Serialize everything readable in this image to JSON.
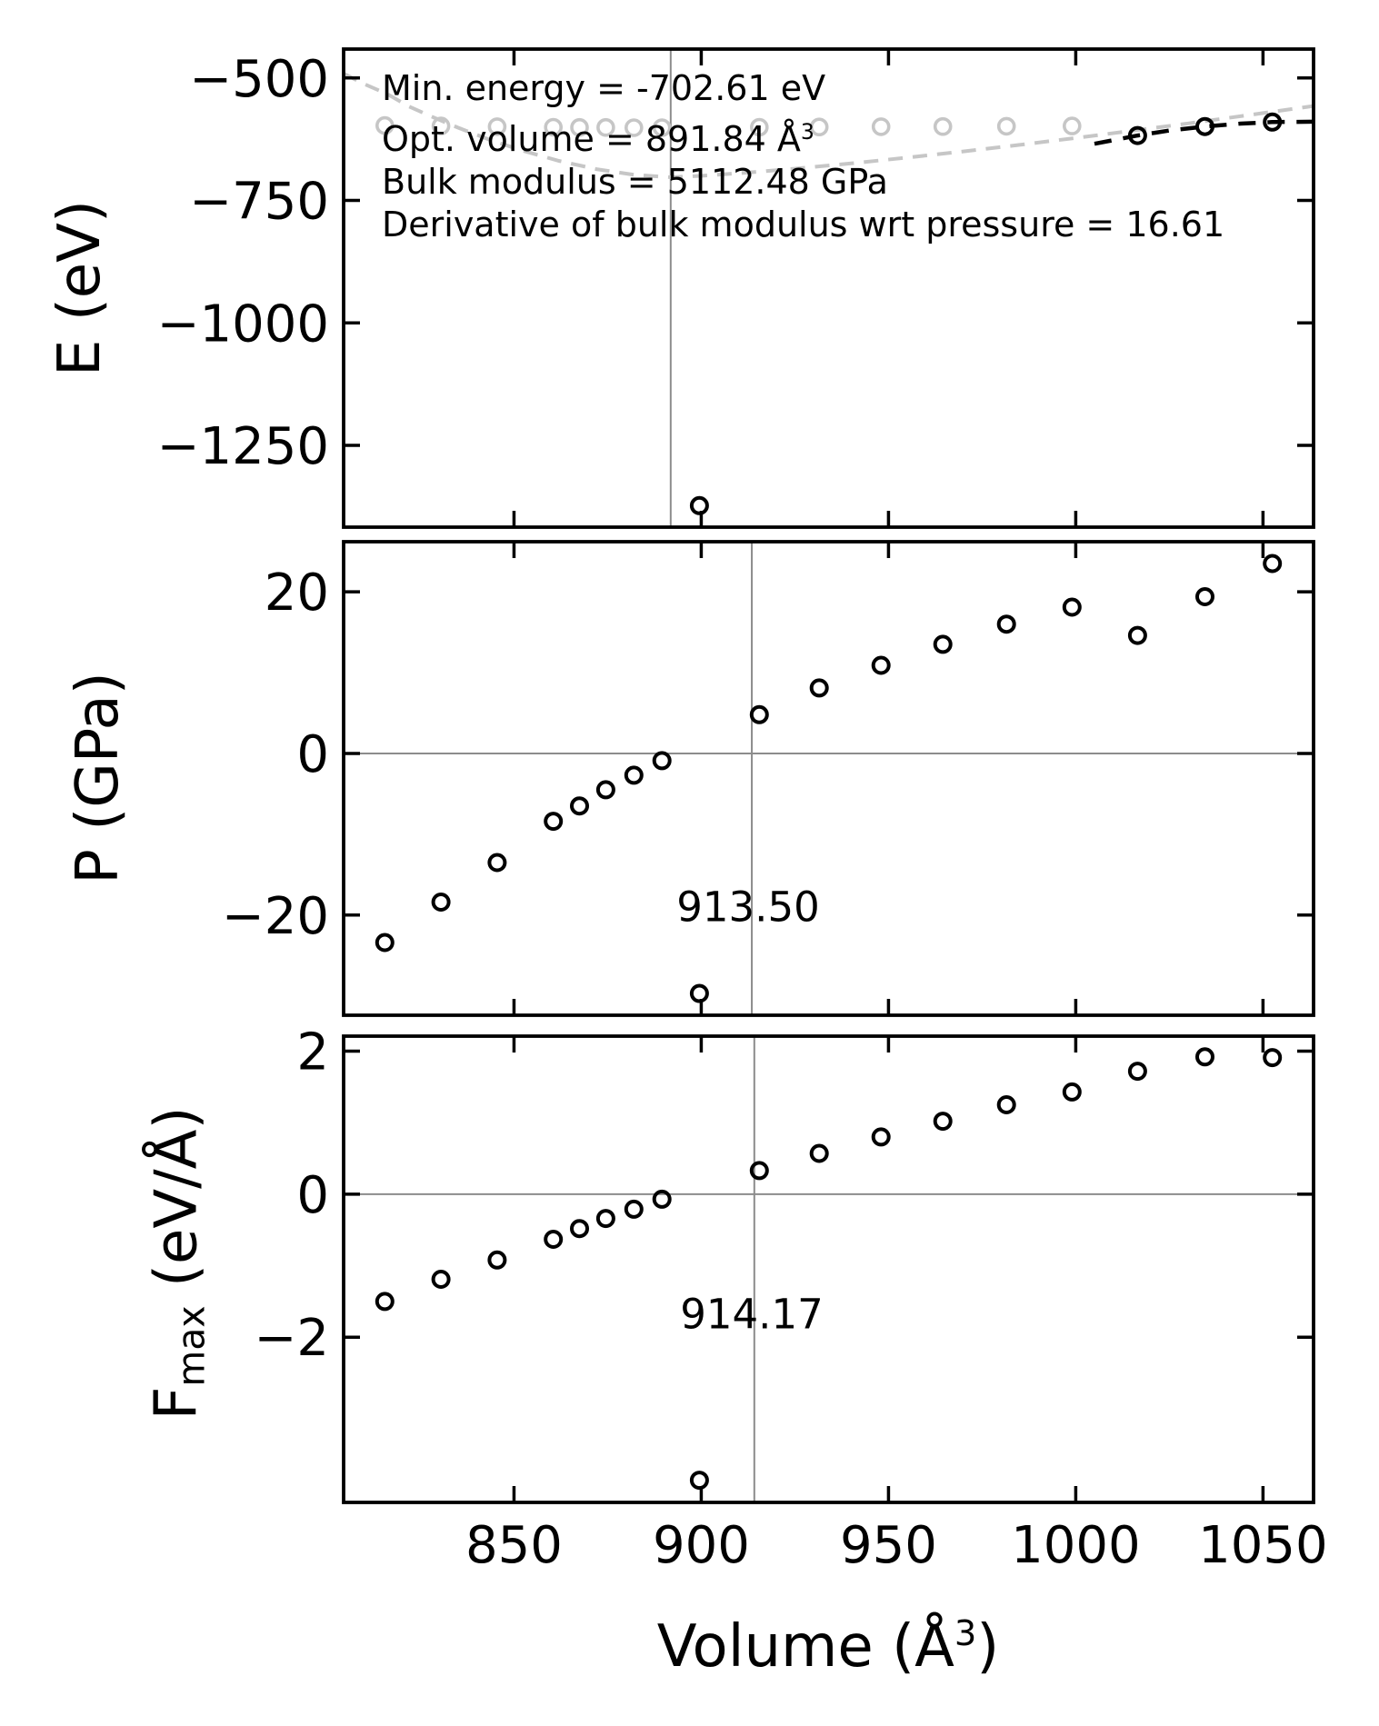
{
  "figure": {
    "background": "#ffffff"
  },
  "style": {
    "spine_color": "#000000",
    "marker_black": "#000000",
    "marker_gray": "#c6c6c6",
    "fit_gray": "#c6c6c6",
    "fit_black": "#000000",
    "ref_line_color": "#8c8c8c",
    "text_color": "#000000"
  },
  "annotations": {
    "lines": [
      {
        "text": "Min. energy = -702.61 eV"
      },
      {
        "text": "Opt. volume = 891.84 Å",
        "sup": "3"
      },
      {
        "text": "Bulk modulus = 5112.48 GPa"
      },
      {
        "text": "Derivative of bulk modulus wrt pressure = 16.61"
      }
    ]
  },
  "axis_titles": {
    "energy": {
      "text": "E (eV)"
    },
    "pressure": {
      "text": "P (GPa)"
    },
    "force": {
      "prefix": "F",
      "sub": "max",
      "suffix": " (eV/Å)"
    },
    "x": {
      "prefix": "Volume (Å",
      "sup": "3",
      "suffix": ")"
    }
  },
  "fit_results": {
    "min_energy_eV": -702.61,
    "opt_volume_A3": 891.84,
    "bulk_modulus_GPa": 5112.48,
    "bulk_modulus_pressure_derivative": 16.61
  },
  "chart_data": {
    "x_axis": {
      "label": "Volume (Å³)",
      "lim": [
        804.5,
        1063.5
      ],
      "ticks": [
        850,
        900,
        950,
        1000,
        1050
      ],
      "tick_labels": [
        "850",
        "900",
        "950",
        "1000",
        "1050"
      ],
      "grid": false
    },
    "panels": [
      {
        "id": "energy",
        "type": "scatter",
        "ylabel": "E (eV)",
        "ylim": [
          -1417,
          -441
        ],
        "yticks": {
          "values": [
            -500,
            -750,
            -1000,
            -1250
          ],
          "labels": [
            "−500",
            "−750",
            "−1000",
            "−1250"
          ]
        },
        "zero_line": false,
        "vline": {
          "x": 891.84
        },
        "series": [
          {
            "name": "energy-scan-gray",
            "color": "#c6c6c6",
            "marker": "open-circle",
            "stroke_width": 3.6,
            "points": [
              [
                815.5,
                -597
              ],
              [
                830.5,
                -598
              ],
              [
                845.5,
                -599.5
              ],
              [
                860.5,
                -600.5
              ],
              [
                867.5,
                -601
              ],
              [
                874.5,
                -601
              ],
              [
                882,
                -601.5
              ],
              [
                889.5,
                -601.5
              ],
              [
                915.5,
                -600.5
              ],
              [
                931.5,
                -600
              ],
              [
                948,
                -599.5
              ],
              [
                964.5,
                -599
              ],
              [
                981.5,
                -598.5
              ],
              [
                999,
                -598
              ]
            ]
          },
          {
            "name": "energy-scan-black",
            "color": "#000000",
            "marker": "open-circle",
            "stroke_width": 4,
            "points": [
              [
                1016.5,
                -617.5
              ],
              [
                1034.5,
                -599
              ],
              [
                1052.5,
                -590
              ]
            ]
          },
          {
            "name": "energy-outlier",
            "color": "#000000",
            "marker": "open-circle",
            "stroke_width": 4,
            "points": [
              [
                899.5,
                -1373
              ]
            ]
          }
        ],
        "fit_curves": [
          {
            "name": "eos-fit-curve",
            "color": "#c6c6c6",
            "dash": [
              16,
              11
            ],
            "width": 4,
            "points": [
              [
                804.5,
                -490.9
              ],
              [
                810,
                -512.5
              ],
              [
                816,
                -532.1
              ],
              [
                822,
                -558.2
              ],
              [
                828,
                -578.8
              ],
              [
                835,
                -601.4
              ],
              [
                843,
                -624.7
              ],
              [
                852,
                -647.7
              ],
              [
                862,
                -669.2
              ],
              [
                872,
                -686.1
              ],
              [
                882,
                -697.7
              ],
              [
                891.84,
                -702.61
              ],
              [
                900,
                -699.8
              ],
              [
                912,
                -693.4
              ],
              [
                925,
                -685.2
              ],
              [
                940,
                -674.4
              ],
              [
                955,
                -662.5
              ],
              [
                970,
                -649.9
              ],
              [
                985,
                -636.5
              ],
              [
                1000,
                -622.4
              ],
              [
                1015,
                -607.8
              ],
              [
                1030,
                -592.8
              ],
              [
                1045,
                -577.1
              ],
              [
                1063.5,
                -557.2
              ]
            ]
          },
          {
            "name": "local-fit-line",
            "color": "#000000",
            "dash": [
              19,
              13
            ],
            "width": 4.5,
            "points": [
              [
                1005,
                -634.3
              ],
              [
                1016.5,
                -617.5
              ],
              [
                1025,
                -607.2
              ],
              [
                1034.5,
                -599
              ],
              [
                1044,
                -593.1
              ],
              [
                1052.5,
                -590
              ],
              [
                1063.5,
                -589.2
              ]
            ]
          }
        ]
      },
      {
        "id": "pressure",
        "type": "scatter",
        "ylabel": "P (GPa)",
        "ylim": [
          -32.4,
          26.2
        ],
        "yticks": {
          "values": [
            20,
            0,
            -20
          ],
          "labels": [
            "20",
            "0",
            "−20"
          ]
        },
        "zero_line": true,
        "vline": {
          "x": 913.5,
          "label": "913.50"
        },
        "series": [
          {
            "name": "pressure-points",
            "color": "#000000",
            "marker": "open-circle",
            "stroke_width": 4,
            "points": [
              [
                815.5,
                -23.4
              ],
              [
                830.5,
                -18.4
              ],
              [
                845.5,
                -13.5
              ],
              [
                860.5,
                -8.4
              ],
              [
                867.5,
                -6.5
              ],
              [
                874.5,
                -4.5
              ],
              [
                882,
                -2.7
              ],
              [
                889.5,
                -0.9
              ],
              [
                899.5,
                -29.7
              ],
              [
                915.5,
                4.8
              ],
              [
                931.5,
                8.1
              ],
              [
                948,
                10.9
              ],
              [
                964.5,
                13.5
              ],
              [
                981.5,
                16.0
              ],
              [
                999,
                18.1
              ],
              [
                1016.5,
                14.6
              ],
              [
                1034.5,
                19.4
              ],
              [
                1052.5,
                23.5
              ]
            ]
          }
        ],
        "fit_curves": []
      },
      {
        "id": "force",
        "type": "scatter",
        "ylabel": "Fmax (eV/Å)",
        "ylim": [
          -4.31,
          2.21
        ],
        "yticks": {
          "values": [
            2,
            0,
            -2
          ],
          "labels": [
            "2",
            "0",
            "−2"
          ]
        },
        "zero_line": true,
        "vline": {
          "x": 914.17,
          "label": "914.17"
        },
        "series": [
          {
            "name": "force-points",
            "color": "#000000",
            "marker": "open-circle",
            "stroke_width": 4,
            "points": [
              [
                815.5,
                -1.5
              ],
              [
                830.5,
                -1.19
              ],
              [
                845.5,
                -0.92
              ],
              [
                860.5,
                -0.63
              ],
              [
                867.5,
                -0.48
              ],
              [
                874.5,
                -0.34
              ],
              [
                882,
                -0.21
              ],
              [
                889.5,
                -0.07
              ],
              [
                899.5,
                -4.0
              ],
              [
                915.5,
                0.33
              ],
              [
                931.5,
                0.57
              ],
              [
                948,
                0.8
              ],
              [
                964.5,
                1.02
              ],
              [
                981.5,
                1.25
              ],
              [
                999,
                1.43
              ],
              [
                1016.5,
                1.72
              ],
              [
                1034.5,
                1.92
              ],
              [
                1052.5,
                1.91
              ]
            ]
          }
        ],
        "fit_curves": []
      }
    ]
  }
}
